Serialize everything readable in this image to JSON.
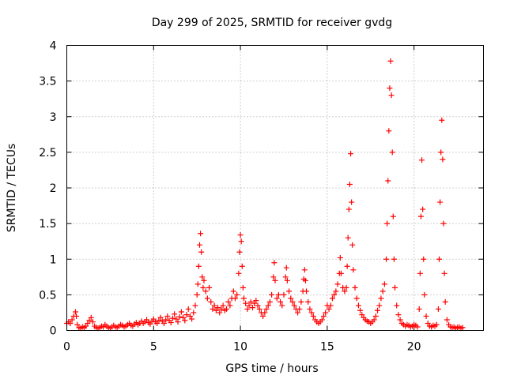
{
  "chart_data": {
    "type": "scatter",
    "title": "Day 299 of 2025, SRMTID for receiver gvdg",
    "xlabel": "GPS time / hours",
    "ylabel": "SRMTID / TECUs",
    "xlim": [
      0,
      24
    ],
    "ylim": [
      0,
      4
    ],
    "xticks": [
      0,
      5,
      10,
      15,
      20
    ],
    "yticks": [
      0,
      0.5,
      1,
      1.5,
      2,
      2.5,
      3,
      3.5,
      4
    ],
    "xtick_labels": [
      "0",
      "5",
      "10",
      "15",
      "20"
    ],
    "ytick_labels": [
      "0",
      "0.5",
      "1",
      "1.5",
      "2",
      "2.5",
      "3",
      "3.5",
      "4"
    ],
    "grid": true,
    "marker": "+",
    "series": [
      {
        "name": "SRMTID",
        "color": "#ff0000",
        "points": [
          [
            0.0,
            0.1
          ],
          [
            0.1,
            0.12
          ],
          [
            0.2,
            0.1
          ],
          [
            0.3,
            0.15
          ],
          [
            0.4,
            0.2
          ],
          [
            0.5,
            0.26
          ],
          [
            0.55,
            0.2
          ],
          [
            0.6,
            0.08
          ],
          [
            0.7,
            0.04
          ],
          [
            0.8,
            0.03
          ],
          [
            0.9,
            0.05
          ],
          [
            1.0,
            0.04
          ],
          [
            1.1,
            0.06
          ],
          [
            1.2,
            0.1
          ],
          [
            1.3,
            0.14
          ],
          [
            1.4,
            0.18
          ],
          [
            1.5,
            0.12
          ],
          [
            1.6,
            0.06
          ],
          [
            1.7,
            0.04
          ],
          [
            1.8,
            0.03
          ],
          [
            1.9,
            0.04
          ],
          [
            2.0,
            0.06
          ],
          [
            2.1,
            0.05
          ],
          [
            2.2,
            0.08
          ],
          [
            2.3,
            0.06
          ],
          [
            2.4,
            0.04
          ],
          [
            2.5,
            0.03
          ],
          [
            2.6,
            0.05
          ],
          [
            2.7,
            0.07
          ],
          [
            2.8,
            0.05
          ],
          [
            2.9,
            0.04
          ],
          [
            3.0,
            0.06
          ],
          [
            3.1,
            0.08
          ],
          [
            3.2,
            0.07
          ],
          [
            3.3,
            0.05
          ],
          [
            3.4,
            0.06
          ],
          [
            3.5,
            0.08
          ],
          [
            3.6,
            0.1
          ],
          [
            3.7,
            0.07
          ],
          [
            3.8,
            0.06
          ],
          [
            3.9,
            0.09
          ],
          [
            4.0,
            0.11
          ],
          [
            4.1,
            0.08
          ],
          [
            4.2,
            0.1
          ],
          [
            4.3,
            0.13
          ],
          [
            4.4,
            0.1
          ],
          [
            4.5,
            0.12
          ],
          [
            4.6,
            0.15
          ],
          [
            4.7,
            0.11
          ],
          [
            4.8,
            0.09
          ],
          [
            4.9,
            0.13
          ],
          [
            5.0,
            0.16
          ],
          [
            5.1,
            0.12
          ],
          [
            5.2,
            0.1
          ],
          [
            5.3,
            0.14
          ],
          [
            5.4,
            0.18
          ],
          [
            5.5,
            0.13
          ],
          [
            5.6,
            0.1
          ],
          [
            5.7,
            0.15
          ],
          [
            5.8,
            0.2
          ],
          [
            5.9,
            0.14
          ],
          [
            6.0,
            0.11
          ],
          [
            6.1,
            0.17
          ],
          [
            6.2,
            0.23
          ],
          [
            6.3,
            0.16
          ],
          [
            6.4,
            0.12
          ],
          [
            6.5,
            0.19
          ],
          [
            6.6,
            0.26
          ],
          [
            6.7,
            0.18
          ],
          [
            6.8,
            0.14
          ],
          [
            6.9,
            0.22
          ],
          [
            7.0,
            0.3
          ],
          [
            7.1,
            0.2
          ],
          [
            7.2,
            0.16
          ],
          [
            7.3,
            0.25
          ],
          [
            7.4,
            0.35
          ],
          [
            7.5,
            0.5
          ],
          [
            7.55,
            0.65
          ],
          [
            7.6,
            0.9
          ],
          [
            7.65,
            1.2
          ],
          [
            7.7,
            1.36
          ],
          [
            7.75,
            1.1
          ],
          [
            7.8,
            0.75
          ],
          [
            7.85,
            0.6
          ],
          [
            7.9,
            0.7
          ],
          [
            8.0,
            0.55
          ],
          [
            8.1,
            0.45
          ],
          [
            8.2,
            0.6
          ],
          [
            8.3,
            0.4
          ],
          [
            8.4,
            0.3
          ],
          [
            8.5,
            0.35
          ],
          [
            8.6,
            0.28
          ],
          [
            8.7,
            0.32
          ],
          [
            8.8,
            0.25
          ],
          [
            8.9,
            0.3
          ],
          [
            9.0,
            0.35
          ],
          [
            9.1,
            0.28
          ],
          [
            9.2,
            0.3
          ],
          [
            9.3,
            0.4
          ],
          [
            9.4,
            0.35
          ],
          [
            9.5,
            0.45
          ],
          [
            9.6,
            0.55
          ],
          [
            9.7,
            0.45
          ],
          [
            9.8,
            0.5
          ],
          [
            9.9,
            0.8
          ],
          [
            9.95,
            1.1
          ],
          [
            10.0,
            1.34
          ],
          [
            10.05,
            1.25
          ],
          [
            10.1,
            0.9
          ],
          [
            10.15,
            0.6
          ],
          [
            10.2,
            0.45
          ],
          [
            10.3,
            0.38
          ],
          [
            10.4,
            0.3
          ],
          [
            10.5,
            0.35
          ],
          [
            10.6,
            0.4
          ],
          [
            10.7,
            0.32
          ],
          [
            10.8,
            0.38
          ],
          [
            10.9,
            0.42
          ],
          [
            11.0,
            0.35
          ],
          [
            11.1,
            0.3
          ],
          [
            11.2,
            0.25
          ],
          [
            11.3,
            0.2
          ],
          [
            11.4,
            0.25
          ],
          [
            11.5,
            0.3
          ],
          [
            11.6,
            0.35
          ],
          [
            11.7,
            0.4
          ],
          [
            11.8,
            0.5
          ],
          [
            11.9,
            0.75
          ],
          [
            11.95,
            0.95
          ],
          [
            12.0,
            0.7
          ],
          [
            12.1,
            0.45
          ],
          [
            12.2,
            0.5
          ],
          [
            12.3,
            0.4
          ],
          [
            12.4,
            0.35
          ],
          [
            12.5,
            0.5
          ],
          [
            12.6,
            0.75
          ],
          [
            12.65,
            0.88
          ],
          [
            12.7,
            0.7
          ],
          [
            12.8,
            0.55
          ],
          [
            12.9,
            0.45
          ],
          [
            13.0,
            0.4
          ],
          [
            13.1,
            0.35
          ],
          [
            13.2,
            0.3
          ],
          [
            13.3,
            0.25
          ],
          [
            13.4,
            0.3
          ],
          [
            13.5,
            0.4
          ],
          [
            13.6,
            0.55
          ],
          [
            13.65,
            0.72
          ],
          [
            13.7,
            0.85
          ],
          [
            13.75,
            0.7
          ],
          [
            13.8,
            0.55
          ],
          [
            13.9,
            0.4
          ],
          [
            14.0,
            0.3
          ],
          [
            14.1,
            0.25
          ],
          [
            14.2,
            0.2
          ],
          [
            14.3,
            0.15
          ],
          [
            14.4,
            0.12
          ],
          [
            14.5,
            0.1
          ],
          [
            14.6,
            0.12
          ],
          [
            14.7,
            0.15
          ],
          [
            14.8,
            0.2
          ],
          [
            14.9,
            0.25
          ],
          [
            15.0,
            0.35
          ],
          [
            15.1,
            0.3
          ],
          [
            15.2,
            0.35
          ],
          [
            15.3,
            0.45
          ],
          [
            15.4,
            0.5
          ],
          [
            15.5,
            0.55
          ],
          [
            15.6,
            0.65
          ],
          [
            15.7,
            0.8
          ],
          [
            15.75,
            1.02
          ],
          [
            15.8,
            0.8
          ],
          [
            15.9,
            0.6
          ],
          [
            16.0,
            0.55
          ],
          [
            16.1,
            0.6
          ],
          [
            16.15,
            0.9
          ],
          [
            16.2,
            1.3
          ],
          [
            16.25,
            1.7
          ],
          [
            16.3,
            2.05
          ],
          [
            16.35,
            2.48
          ],
          [
            16.4,
            1.8
          ],
          [
            16.45,
            1.2
          ],
          [
            16.5,
            0.85
          ],
          [
            16.6,
            0.6
          ],
          [
            16.7,
            0.45
          ],
          [
            16.8,
            0.35
          ],
          [
            16.9,
            0.28
          ],
          [
            17.0,
            0.22
          ],
          [
            17.1,
            0.18
          ],
          [
            17.2,
            0.15
          ],
          [
            17.3,
            0.13
          ],
          [
            17.4,
            0.12
          ],
          [
            17.5,
            0.1
          ],
          [
            17.6,
            0.12
          ],
          [
            17.7,
            0.15
          ],
          [
            17.8,
            0.2
          ],
          [
            17.9,
            0.28
          ],
          [
            18.0,
            0.35
          ],
          [
            18.1,
            0.45
          ],
          [
            18.2,
            0.55
          ],
          [
            18.3,
            0.65
          ],
          [
            18.4,
            1.0
          ],
          [
            18.45,
            1.5
          ],
          [
            18.5,
            2.1
          ],
          [
            18.55,
            2.8
          ],
          [
            18.6,
            3.4
          ],
          [
            18.65,
            3.78
          ],
          [
            18.7,
            3.3
          ],
          [
            18.75,
            2.5
          ],
          [
            18.8,
            1.6
          ],
          [
            18.85,
            1.0
          ],
          [
            18.9,
            0.6
          ],
          [
            19.0,
            0.35
          ],
          [
            19.1,
            0.22
          ],
          [
            19.2,
            0.15
          ],
          [
            19.3,
            0.1
          ],
          [
            19.4,
            0.08
          ],
          [
            19.5,
            0.06
          ],
          [
            19.6,
            0.08
          ],
          [
            19.7,
            0.07
          ],
          [
            19.8,
            0.05
          ],
          [
            19.9,
            0.06
          ],
          [
            20.0,
            0.08
          ],
          [
            20.1,
            0.07
          ],
          [
            20.2,
            0.05
          ],
          [
            20.3,
            0.3
          ],
          [
            20.35,
            0.8
          ],
          [
            20.4,
            1.6
          ],
          [
            20.45,
            2.39
          ],
          [
            20.5,
            1.7
          ],
          [
            20.55,
            1.0
          ],
          [
            20.6,
            0.5
          ],
          [
            20.7,
            0.2
          ],
          [
            20.8,
            0.1
          ],
          [
            20.9,
            0.06
          ],
          [
            21.0,
            0.05
          ],
          [
            21.1,
            0.07
          ],
          [
            21.2,
            0.06
          ],
          [
            21.3,
            0.08
          ],
          [
            21.4,
            0.3
          ],
          [
            21.45,
            1.0
          ],
          [
            21.5,
            1.8
          ],
          [
            21.55,
            2.5
          ],
          [
            21.6,
            2.95
          ],
          [
            21.65,
            2.4
          ],
          [
            21.7,
            1.5
          ],
          [
            21.75,
            0.8
          ],
          [
            21.8,
            0.4
          ],
          [
            21.9,
            0.15
          ],
          [
            22.0,
            0.08
          ],
          [
            22.1,
            0.05
          ],
          [
            22.2,
            0.04
          ],
          [
            22.3,
            0.05
          ],
          [
            22.4,
            0.03
          ],
          [
            22.5,
            0.04
          ],
          [
            22.6,
            0.05
          ],
          [
            22.7,
            0.03
          ],
          [
            22.8,
            0.04
          ]
        ]
      }
    ]
  }
}
